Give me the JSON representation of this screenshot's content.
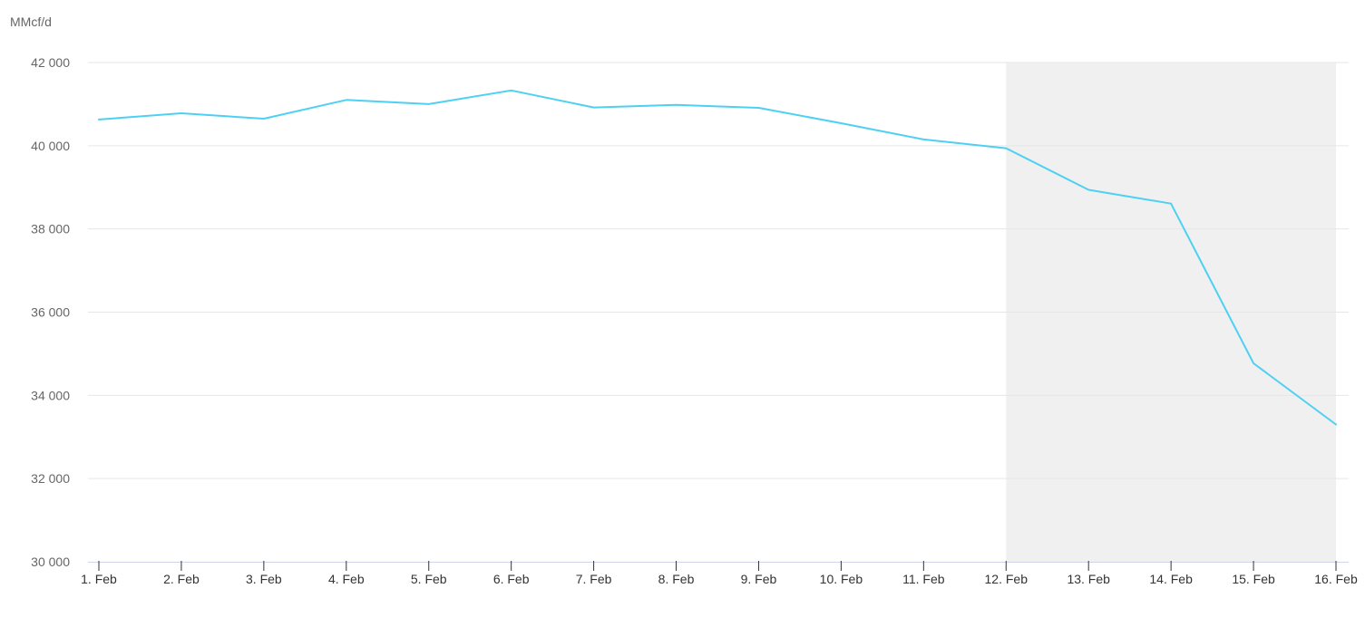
{
  "chart_data": {
    "type": "line",
    "unit_label": "MMcf/d",
    "title": "",
    "xlabel": "",
    "ylabel": "MMcf/d",
    "ylim": [
      30000,
      42000
    ],
    "yticks": [
      30000,
      32000,
      34000,
      36000,
      38000,
      40000,
      42000
    ],
    "ytick_labels": [
      "30 000",
      "32 000",
      "34 000",
      "36 000",
      "38 000",
      "40 000",
      "42 000"
    ],
    "categories": [
      "1. Feb",
      "2. Feb",
      "3. Feb",
      "4. Feb",
      "5. Feb",
      "6. Feb",
      "7. Feb",
      "8. Feb",
      "9. Feb",
      "10. Feb",
      "11. Feb",
      "12. Feb",
      "13. Feb",
      "14. Feb",
      "15. Feb",
      "16. Feb"
    ],
    "series": [
      {
        "values": [
          40630,
          40780,
          40650,
          41100,
          41000,
          41330,
          40920,
          40980,
          40910,
          40540,
          40150,
          39940,
          38940,
          38610,
          34770,
          33300
        ],
        "color": "#4dd0f3"
      }
    ],
    "shaded_region": {
      "from": "12. Feb",
      "to": "16. Feb",
      "color": "#f0f0f0"
    },
    "grid": true,
    "legend": "none",
    "colors": {
      "gridline": "#e6e6e6",
      "axis": "#ccd6eb",
      "tick_label": "#666666",
      "x_tick_label": "#333333",
      "tick_mark": "#333333"
    }
  }
}
